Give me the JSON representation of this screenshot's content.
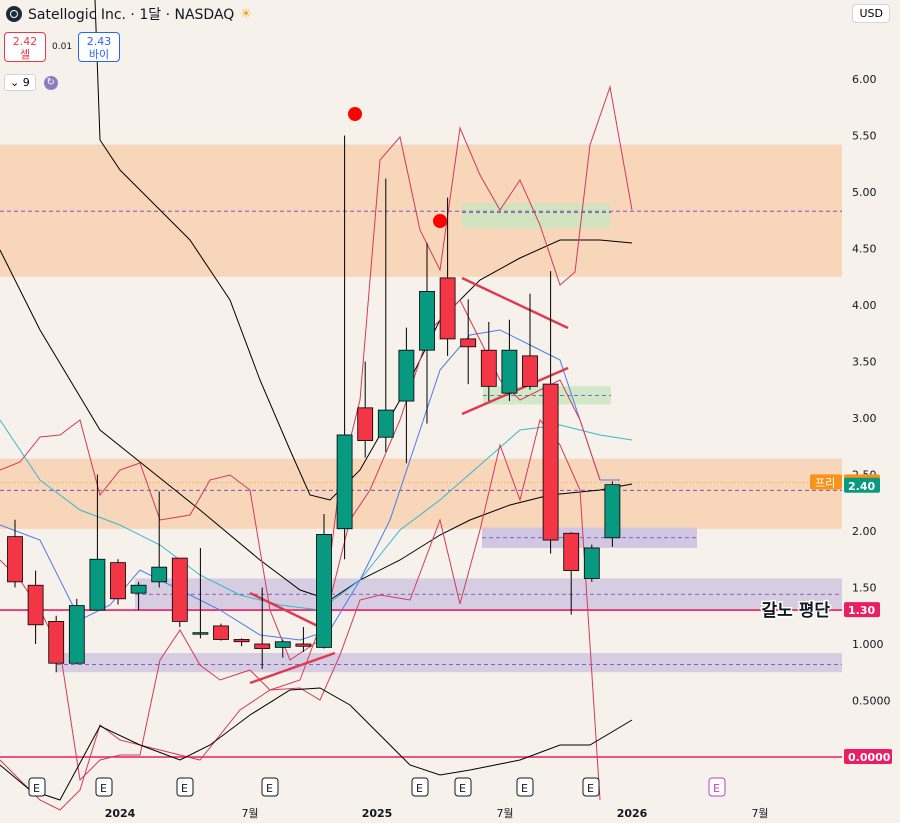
{
  "header": {
    "title": "Satellogic Inc. · 1달 · NASDAQ",
    "currency": "USD"
  },
  "quote": {
    "sell_price": "2.42",
    "sell_label": "셀",
    "spread": "0.01",
    "buy_price": "2.43",
    "buy_label": "바이"
  },
  "indicator": {
    "chip_label": "⌄ 9"
  },
  "colors": {
    "up": "#089981",
    "down": "#f23645",
    "zone_orange": "#f8c8a0",
    "zone_purple": "#c9bde0",
    "zone_green": "#c8e6c0"
  },
  "chart_data": {
    "type": "candlestick",
    "ylim": [
      0.0,
      6.2
    ],
    "y_ticks": [
      "6.00",
      "5.50",
      "5.00",
      "4.50",
      "4.00",
      "3.50",
      "3.00",
      "2.50",
      "2.00",
      "1.50",
      "1.000",
      "0.5000"
    ],
    "x_labels": [
      "2024",
      "7월",
      "2025",
      "7월",
      "2026",
      "7월"
    ],
    "candles": [
      {
        "o": 1.95,
        "h": 2.1,
        "l": 1.5,
        "c": 1.55
      },
      {
        "o": 1.52,
        "h": 1.65,
        "l": 1.0,
        "c": 1.17
      },
      {
        "o": 1.2,
        "h": 1.25,
        "l": 0.75,
        "c": 0.83
      },
      {
        "o": 0.83,
        "h": 1.4,
        "l": 0.82,
        "c": 1.34
      },
      {
        "o": 1.3,
        "h": 2.5,
        "l": 1.3,
        "c": 1.75
      },
      {
        "o": 1.72,
        "h": 1.75,
        "l": 1.35,
        "c": 1.4
      },
      {
        "o": 1.45,
        "h": 1.55,
        "l": 1.3,
        "c": 1.52
      },
      {
        "o": 1.55,
        "h": 2.35,
        "l": 1.5,
        "c": 1.68
      },
      {
        "o": 1.76,
        "h": 1.76,
        "l": 1.15,
        "c": 1.2
      },
      {
        "o": 1.1,
        "h": 1.85,
        "l": 1.05,
        "c": 1.1
      },
      {
        "o": 1.16,
        "h": 1.18,
        "l": 1.03,
        "c": 1.04
      },
      {
        "o": 1.04,
        "h": 1.05,
        "l": 0.98,
        "c": 1.02
      },
      {
        "o": 1.0,
        "h": 1.5,
        "l": 0.78,
        "c": 0.96
      },
      {
        "o": 0.97,
        "h": 1.04,
        "l": 0.88,
        "c": 1.02
      },
      {
        "o": 1.0,
        "h": 1.15,
        "l": 0.93,
        "c": 0.98
      },
      {
        "o": 0.97,
        "h": 2.15,
        "l": 0.96,
        "c": 1.97
      },
      {
        "o": 2.02,
        "h": 5.5,
        "l": 1.75,
        "c": 2.85
      },
      {
        "o": 3.09,
        "h": 3.5,
        "l": 2.65,
        "c": 2.8
      },
      {
        "o": 2.83,
        "h": 5.12,
        "l": 2.7,
        "c": 3.07
      },
      {
        "o": 3.15,
        "h": 3.8,
        "l": 2.6,
        "c": 3.6
      },
      {
        "o": 3.6,
        "h": 4.55,
        "l": 2.95,
        "c": 4.12
      },
      {
        "o": 4.24,
        "h": 4.95,
        "l": 3.55,
        "c": 3.7
      },
      {
        "o": 3.7,
        "h": 4.05,
        "l": 3.3,
        "c": 3.63
      },
      {
        "o": 3.6,
        "h": 3.85,
        "l": 3.15,
        "c": 3.28
      },
      {
        "o": 3.22,
        "h": 3.87,
        "l": 3.15,
        "c": 3.6
      },
      {
        "o": 3.55,
        "h": 4.1,
        "l": 3.25,
        "c": 3.28
      },
      {
        "o": 3.3,
        "h": 4.3,
        "l": 1.8,
        "c": 1.92
      },
      {
        "o": 1.98,
        "h": 1.99,
        "l": 1.26,
        "c": 1.65
      },
      {
        "o": 1.58,
        "h": 1.88,
        "l": 1.55,
        "c": 1.85
      },
      {
        "o": 1.94,
        "h": 2.44,
        "l": 1.86,
        "c": 2.41
      }
    ],
    "zones": [
      {
        "color": "orange",
        "from": 4.25,
        "to": 5.42
      },
      {
        "color": "orange",
        "from": 2.02,
        "to": 2.64
      },
      {
        "color": "purple",
        "from": 1.3,
        "to": 1.58
      },
      {
        "color": "purple",
        "from": 0.75,
        "to": 0.92
      }
    ],
    "price_labels": [
      {
        "text": "2.43",
        "value": 2.43,
        "color": "#f7931a",
        "tag": "프리"
      },
      {
        "text": "2.40",
        "value": 2.4,
        "color": "#089981"
      },
      {
        "text": "1.30",
        "value": 1.3,
        "color": "#e91e63"
      },
      {
        "text": "0.0000",
        "value": 0.0,
        "color": "#e91e63"
      }
    ],
    "annotations": [
      "갈노 평단"
    ],
    "events": [
      "E",
      "E",
      "E",
      "E",
      "E",
      "E",
      "E",
      "E",
      "E",
      "E",
      "E"
    ]
  }
}
